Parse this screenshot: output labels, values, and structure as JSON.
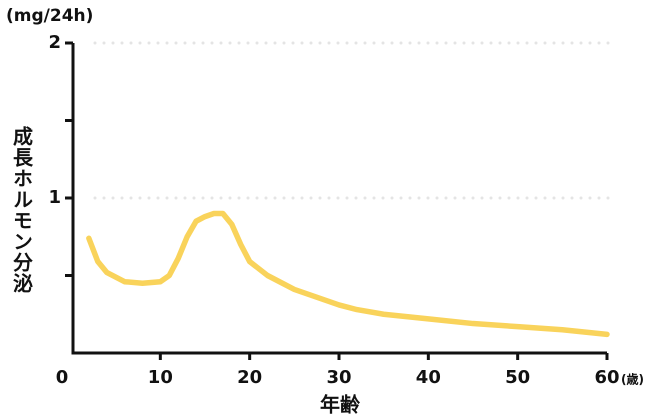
{
  "chart_data": {
    "type": "line",
    "y_unit": "(mg/24h)",
    "y_label": "成長ホルモン分泌",
    "x_label": "年齢",
    "x_unit": "(歳)",
    "xlim": [
      0,
      60
    ],
    "xticks": [
      0,
      10,
      20,
      30,
      40,
      50,
      60
    ],
    "ylim": [
      0,
      2
    ],
    "yticks": [
      1,
      2
    ],
    "minor_yticks": [
      0.5,
      1.5
    ],
    "grid": true,
    "x": [
      2,
      3,
      4,
      6,
      8,
      10,
      11,
      12,
      13,
      14,
      15,
      16,
      17,
      18,
      19,
      20,
      22,
      25,
      30,
      32,
      35,
      40,
      45,
      50,
      55,
      60
    ],
    "series": [
      {
        "color": "#f9d35b",
        "values": [
          0.74,
          0.59,
          0.52,
          0.46,
          0.45,
          0.46,
          0.5,
          0.61,
          0.75,
          0.85,
          0.88,
          0.9,
          0.9,
          0.83,
          0.7,
          0.59,
          0.5,
          0.41,
          0.31,
          0.28,
          0.25,
          0.22,
          0.19,
          0.17,
          0.15,
          0.12
        ]
      }
    ]
  }
}
